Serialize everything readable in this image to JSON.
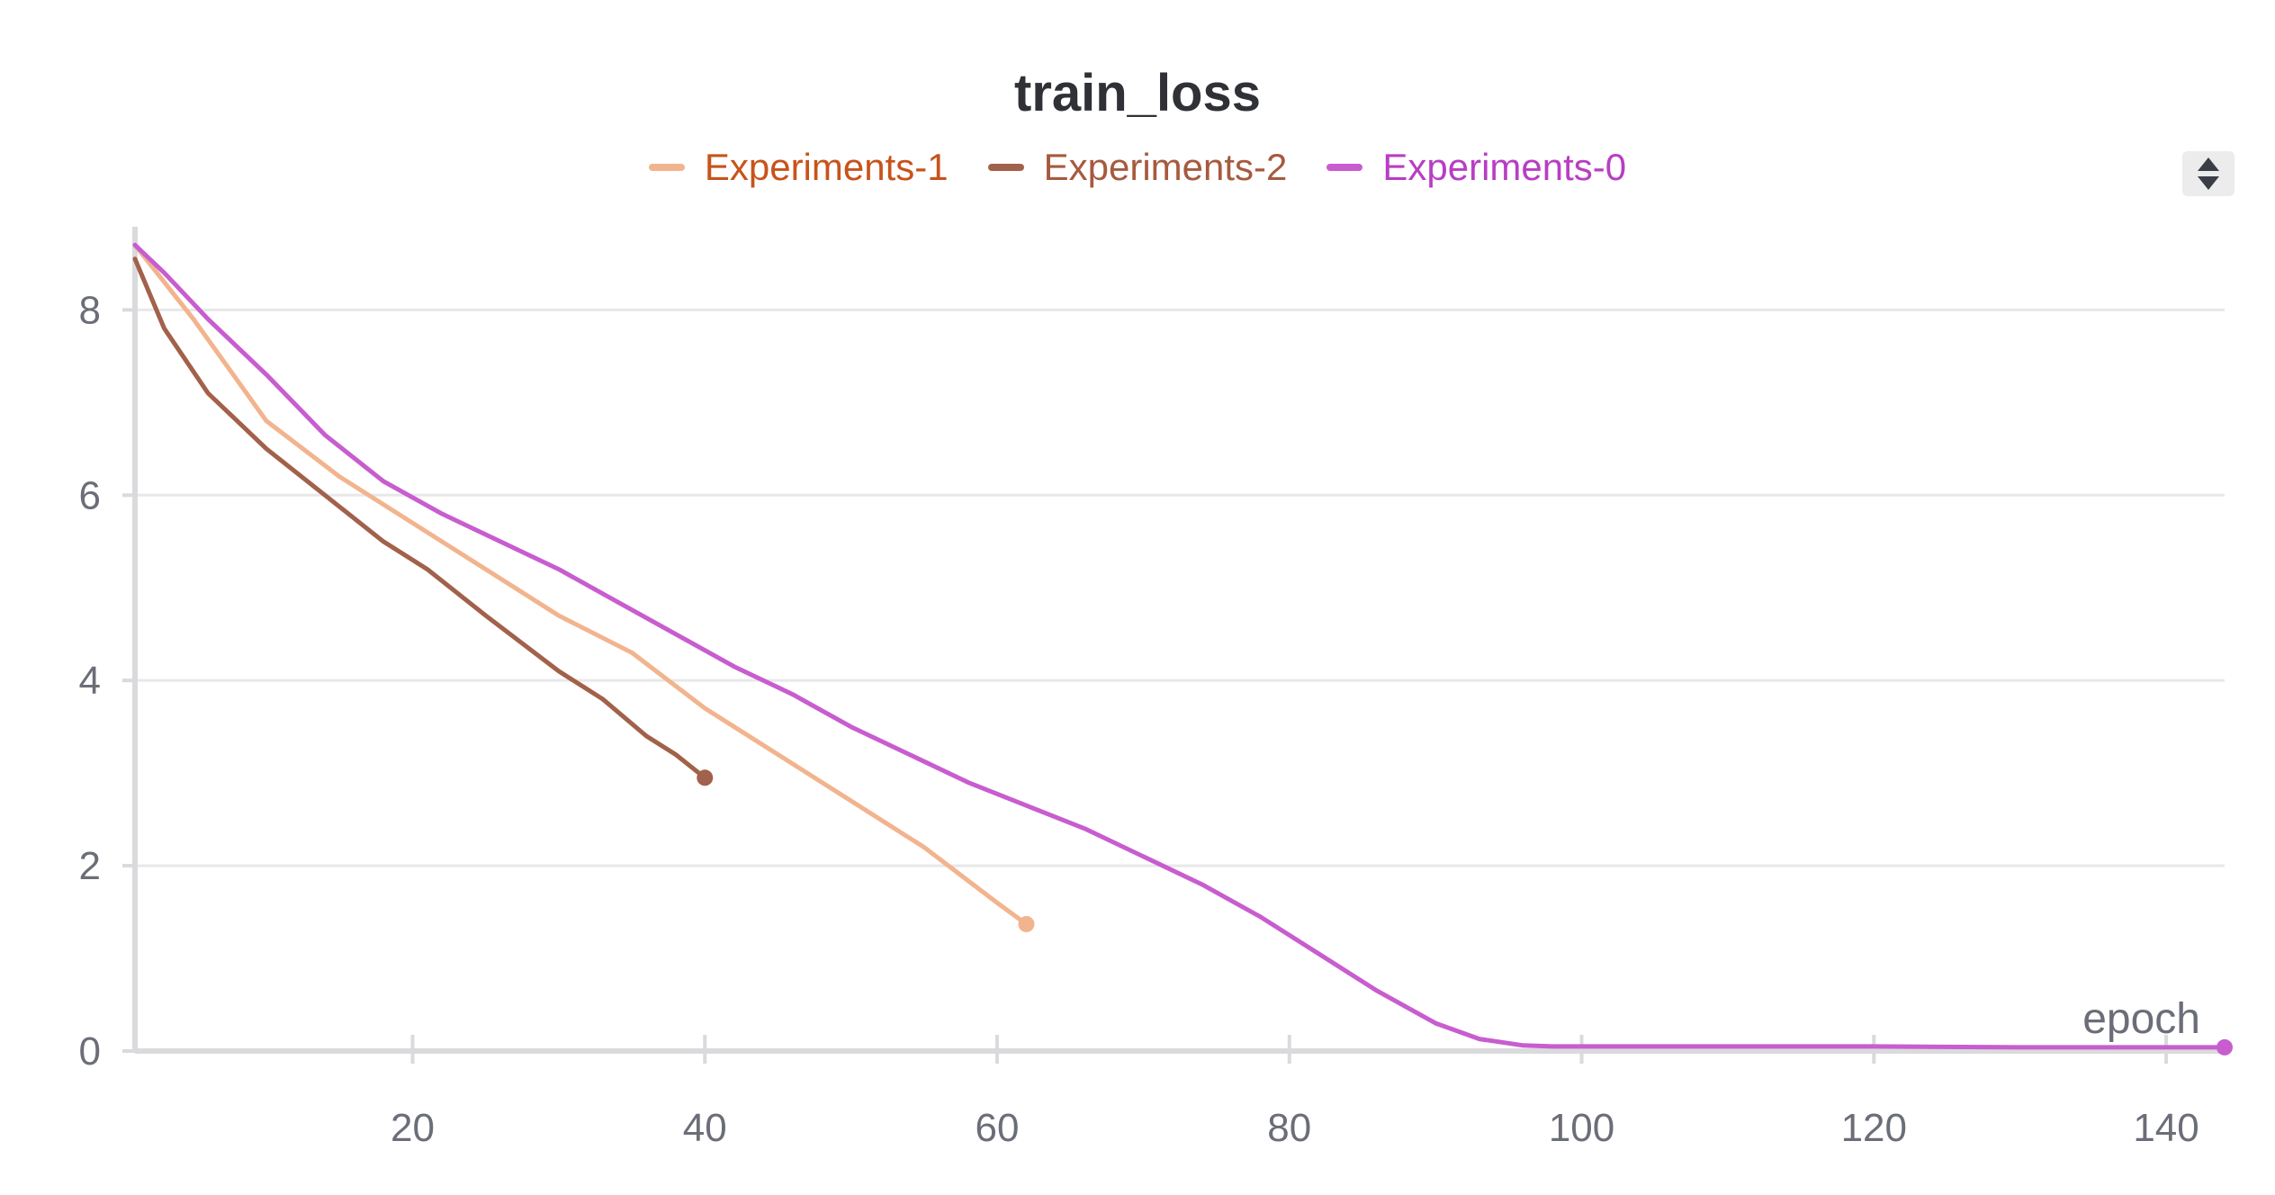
{
  "chart_data": {
    "type": "line",
    "title": "train_loss",
    "xlabel": "epoch",
    "ylabel": "",
    "xlim": [
      1,
      144
    ],
    "ylim": [
      0,
      8.8
    ],
    "x_ticks": [
      20,
      40,
      60,
      80,
      100,
      120,
      140
    ],
    "y_ticks": [
      0,
      2,
      4,
      6,
      8
    ],
    "grid": "horizontal",
    "legend_position": "top-center",
    "series": [
      {
        "name": "Experiments-1",
        "color": "#f2b48e",
        "legend_text_color": "#c8531b",
        "x": [
          1,
          5,
          10,
          15,
          20,
          25,
          30,
          35,
          40,
          45,
          50,
          55,
          60,
          62
        ],
        "y": [
          8.7,
          7.9,
          6.8,
          6.2,
          5.7,
          5.2,
          4.7,
          4.3,
          3.7,
          3.2,
          2.7,
          2.2,
          1.6,
          1.37
        ]
      },
      {
        "name": "Experiments-2",
        "color": "#a2614a",
        "legend_text_color": "#a65a3e",
        "x": [
          1,
          3,
          6,
          10,
          14,
          18,
          21,
          25,
          30,
          33,
          36,
          38,
          40
        ],
        "y": [
          8.55,
          7.8,
          7.1,
          6.5,
          6.0,
          5.5,
          5.2,
          4.7,
          4.1,
          3.8,
          3.4,
          3.2,
          2.95
        ]
      },
      {
        "name": "Experiments-0",
        "color": "#c85dcf",
        "legend_text_color": "#b83ec4",
        "x": [
          1,
          3,
          6,
          10,
          14,
          18,
          22,
          26,
          30,
          34,
          38,
          42,
          46,
          50,
          54,
          58,
          62,
          66,
          70,
          74,
          78,
          82,
          86,
          90,
          93,
          96,
          98,
          100,
          110,
          120,
          130,
          144
        ],
        "y": [
          8.7,
          8.4,
          7.9,
          7.3,
          6.65,
          6.15,
          5.8,
          5.5,
          5.2,
          4.85,
          4.5,
          4.15,
          3.85,
          3.5,
          3.2,
          2.9,
          2.65,
          2.4,
          2.1,
          1.8,
          1.45,
          1.05,
          0.65,
          0.3,
          0.13,
          0.06,
          0.05,
          0.05,
          0.05,
          0.05,
          0.04,
          0.04
        ]
      }
    ]
  },
  "legend_toggle_icon": "sort-arrows-icon"
}
